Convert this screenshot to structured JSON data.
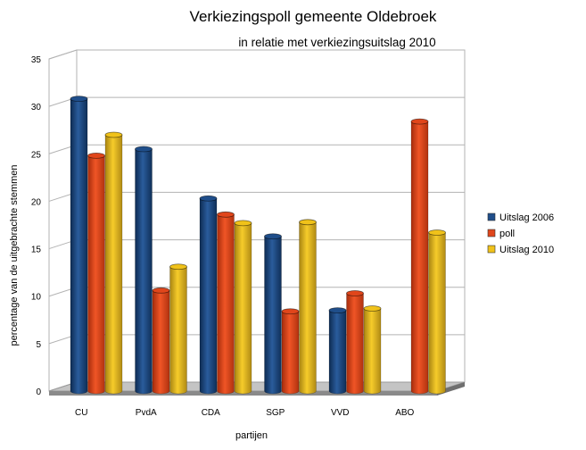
{
  "chart_data": {
    "type": "bar",
    "title": "Verkiezingspoll gemeente Oldebroek",
    "subtitle": "in relatie met verkiezingsuitslag 2010",
    "xlabel": "partijen",
    "ylabel": "percentage van de uitgebrachte stemmen",
    "ylim": [
      0,
      35
    ],
    "yticks": [
      0,
      5,
      10,
      15,
      20,
      25,
      30,
      35
    ],
    "grid": true,
    "legend_position": "right",
    "categories": [
      "CU",
      "PvdA",
      "CDA",
      "SGP",
      "VVD",
      "ABO"
    ],
    "series": [
      {
        "name": "Uitslag 2006",
        "color": "#1f4e8a",
        "values": [
          30.8,
          25.5,
          20.3,
          16.3,
          8.5,
          null
        ]
      },
      {
        "name": "poll",
        "color": "#e0461b",
        "values": [
          24.8,
          10.6,
          18.6,
          8.4,
          10.3,
          28.4
        ]
      },
      {
        "name": "Uitslag 2010",
        "color": "#f0c21a",
        "values": [
          27.0,
          13.1,
          17.7,
          17.8,
          8.7,
          16.7
        ]
      }
    ]
  }
}
